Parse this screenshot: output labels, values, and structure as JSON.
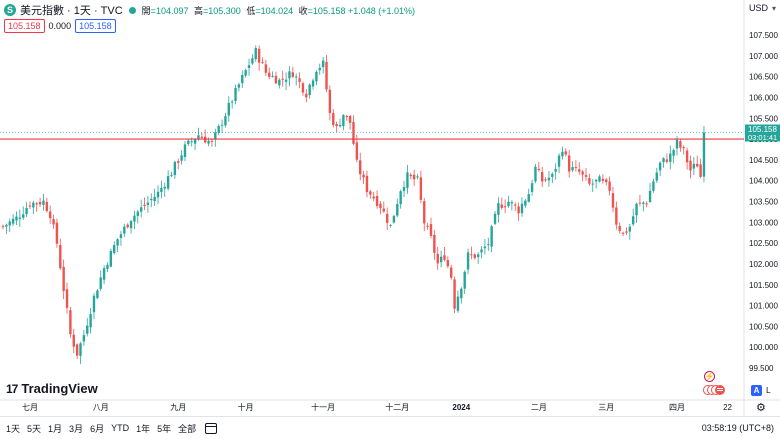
{
  "header": {
    "symbol_badge": "S",
    "title": "美元指數 · 1天 · TVC",
    "open_label": "開",
    "open": "=104.097",
    "high_label": "高",
    "high": "=105.300",
    "low_label": "低",
    "low": "=104.024",
    "close_label": "收",
    "close": "=105.158",
    "change": "+1.048 (+1.01%)",
    "bid": "105.158",
    "spread": "0.000",
    "ask": "105.158",
    "currency": "USD"
  },
  "logo": {
    "text": "TradingView",
    "mark": "17"
  },
  "toolbar": {
    "ranges": [
      "1天",
      "5天",
      "1月",
      "3月",
      "6月",
      "YTD",
      "1年",
      "5年",
      "全部"
    ],
    "clock": "03:58:19 (UTC+8)"
  },
  "side_buttons": {
    "a": "A",
    "l": "L",
    "flash": "⚡"
  },
  "colors": {
    "up": "#26a69a",
    "down": "#ef5350",
    "price_line": "#f23645",
    "label_green": "#089981"
  },
  "chart_data": {
    "type": "candlestick",
    "y_ticks": [
      99.5,
      100,
      100.5,
      101,
      101.5,
      102,
      102.5,
      103,
      103.5,
      104,
      104.5,
      105,
      105.5,
      106,
      106.5,
      107,
      107.5
    ],
    "y_tick_labels": [
      "99.500",
      "100.000",
      "100.500",
      "101.000",
      "101.500",
      "102.000",
      "102.500",
      "103.000",
      "103.500",
      "104.000",
      "104.500",
      "105.000",
      "105.500",
      "106.000",
      "106.500",
      "107.000",
      "107.500"
    ],
    "ylim": [
      99.2,
      107.9
    ],
    "x_labels": [
      {
        "label": "七月",
        "index": 8
      },
      {
        "label": "八月",
        "index": 29
      },
      {
        "label": "九月",
        "index": 52
      },
      {
        "label": "十月",
        "index": 72
      },
      {
        "label": "十一月",
        "index": 95
      },
      {
        "label": "十二月",
        "index": 117
      },
      {
        "label": "2024",
        "index": 136
      },
      {
        "label": "二月",
        "index": 159
      },
      {
        "label": "三月",
        "index": 179
      },
      {
        "label": "四月",
        "index": 200
      },
      {
        "label": "22",
        "index": 215
      }
    ],
    "last_price": 105.158,
    "last_price_label": "105.158",
    "countdown": "03:01:41",
    "horizontal_line": 105.0,
    "close_path": [
      [
        0,
        102.9
      ],
      [
        4,
        103.1
      ],
      [
        8,
        103.45
      ],
      [
        12,
        103.5
      ],
      [
        14,
        103.2
      ],
      [
        16,
        102.5
      ],
      [
        18,
        101.4
      ],
      [
        20,
        100.3
      ],
      [
        22,
        99.85
      ],
      [
        24,
        100.3
      ],
      [
        27,
        101.2
      ],
      [
        30,
        101.9
      ],
      [
        34,
        102.6
      ],
      [
        38,
        103.1
      ],
      [
        42,
        103.4
      ],
      [
        46,
        103.7
      ],
      [
        50,
        104.2
      ],
      [
        54,
        104.8
      ],
      [
        58,
        105.1
      ],
      [
        62,
        104.9
      ],
      [
        66,
        105.6
      ],
      [
        70,
        106.3
      ],
      [
        73,
        106.8
      ],
      [
        75,
        107.1
      ],
      [
        78,
        106.6
      ],
      [
        82,
        106.4
      ],
      [
        86,
        106.6
      ],
      [
        90,
        106.1
      ],
      [
        93,
        106.7
      ],
      [
        95,
        106.8
      ],
      [
        97,
        105.6
      ],
      [
        99,
        105.25
      ],
      [
        101,
        105.6
      ],
      [
        103,
        105.4
      ],
      [
        105,
        104.4
      ],
      [
        108,
        103.8
      ],
      [
        112,
        103.4
      ],
      [
        115,
        102.9
      ],
      [
        118,
        103.8
      ],
      [
        120,
        104.1
      ],
      [
        123,
        104.0
      ],
      [
        125,
        103.0
      ],
      [
        127,
        102.6
      ],
      [
        129,
        102.0
      ],
      [
        131,
        102.2
      ],
      [
        133,
        101.7
      ],
      [
        134,
        101.0
      ],
      [
        136,
        101.5
      ],
      [
        138,
        102.2
      ],
      [
        141,
        102.2
      ],
      [
        144,
        102.5
      ],
      [
        147,
        103.4
      ],
      [
        150,
        103.5
      ],
      [
        153,
        103.3
      ],
      [
        156,
        103.7
      ],
      [
        158,
        104.3
      ],
      [
        160,
        104.0
      ],
      [
        163,
        104.1
      ],
      [
        166,
        104.8
      ],
      [
        168,
        104.3
      ],
      [
        171,
        104.2
      ],
      [
        174,
        103.9
      ],
      [
        177,
        104.0
      ],
      [
        180,
        103.8
      ],
      [
        182,
        103.0
      ],
      [
        184,
        102.7
      ],
      [
        186,
        102.9
      ],
      [
        188,
        103.4
      ],
      [
        191,
        103.5
      ],
      [
        193,
        104.0
      ],
      [
        195,
        104.4
      ],
      [
        198,
        104.6
      ],
      [
        200,
        104.9
      ],
      [
        202,
        104.7
      ],
      [
        204,
        104.25
      ],
      [
        206,
        104.4
      ],
      [
        207,
        104.1
      ],
      [
        208,
        105.158
      ]
    ]
  }
}
